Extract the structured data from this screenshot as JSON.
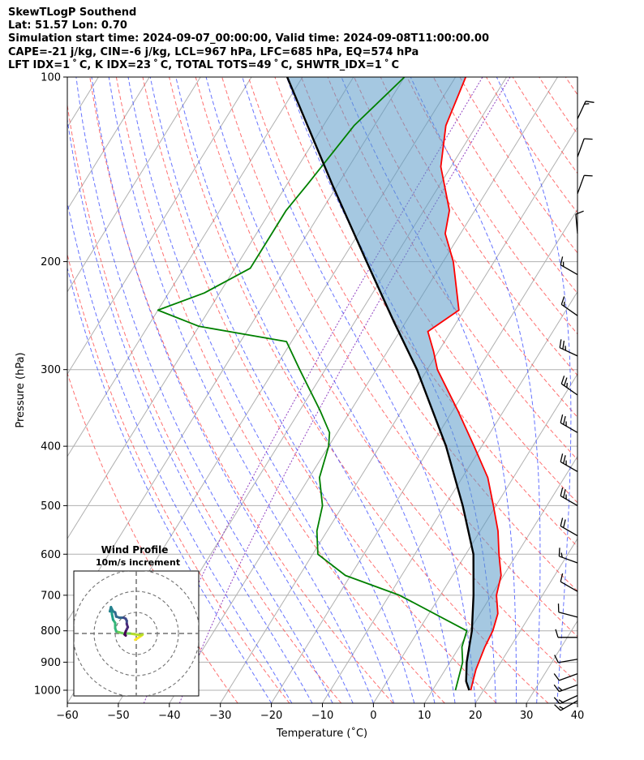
{
  "header": {
    "line1": "SkewTLogP Southend",
    "line2": "Lat: 51.57   Lon: 0.70",
    "line3": "Simulation start time: 2024-09-07_00:00:00, Valid time: 2024-09-08T11:00:00.00",
    "line4": "CAPE=-21 j/kg, CIN=-6 j/kg, LCL=967 hPa, LFC=685 hPa, EQ=574 hPa",
    "line5": "LFT IDX=1 ˚ C, K IDX=23 ˚ C, TOTAL TOTS=49 ˚ C, SHWTR_IDX=1 ˚ C"
  },
  "chart_data": {
    "type": "skewt",
    "xlabel": "Temperature (˚C)",
    "ylabel": "Pressure (hPa)",
    "xlim": [
      -60,
      40
    ],
    "ylim_hpa": [
      1050,
      100
    ],
    "x_ticks": [
      "−60",
      "−50",
      "−40",
      "−30",
      "−20",
      "−10",
      "0",
      "10",
      "20",
      "30",
      "40"
    ],
    "y_ticks": [
      "100",
      "200",
      "300",
      "400",
      "500",
      "600",
      "700",
      "800",
      "900",
      "1000"
    ],
    "temperature_profile": [
      {
        "p": 1000,
        "t": 17.5
      },
      {
        "p": 975,
        "t": 17.0
      },
      {
        "p": 925,
        "t": 16.0
      },
      {
        "p": 850,
        "t": 15.0
      },
      {
        "p": 800,
        "t": 14.6
      },
      {
        "p": 750,
        "t": 13.5
      },
      {
        "p": 700,
        "t": 11.0
      },
      {
        "p": 650,
        "t": 9.5
      },
      {
        "p": 600,
        "t": 6.5
      },
      {
        "p": 550,
        "t": 3.5
      },
      {
        "p": 500,
        "t": -0.5
      },
      {
        "p": 450,
        "t": -5.0
      },
      {
        "p": 400,
        "t": -11.5
      },
      {
        "p": 350,
        "t": -19.0
      },
      {
        "p": 300,
        "t": -28.0
      },
      {
        "p": 280,
        "t": -31.0
      },
      {
        "p": 260,
        "t": -34.5
      },
      {
        "p": 240,
        "t": -31.0
      },
      {
        "p": 200,
        "t": -38.0
      },
      {
        "p": 180,
        "t": -43.0
      },
      {
        "p": 165,
        "t": -45.0
      },
      {
        "p": 140,
        "t": -52.0
      },
      {
        "p": 120,
        "t": -56.0
      },
      {
        "p": 100,
        "t": -58.0
      }
    ],
    "dewpoint_profile": [
      {
        "p": 1000,
        "t": 14.5
      },
      {
        "p": 900,
        "t": 12.5
      },
      {
        "p": 850,
        "t": 10.5
      },
      {
        "p": 800,
        "t": 9.5
      },
      {
        "p": 700,
        "t": -8.0
      },
      {
        "p": 650,
        "t": -21.0
      },
      {
        "p": 600,
        "t": -29.0
      },
      {
        "p": 550,
        "t": -32.0
      },
      {
        "p": 500,
        "t": -34.0
      },
      {
        "p": 450,
        "t": -38.0
      },
      {
        "p": 400,
        "t": -40.0
      },
      {
        "p": 380,
        "t": -41.5
      },
      {
        "p": 350,
        "t": -46.0
      },
      {
        "p": 300,
        "t": -55.0
      },
      {
        "p": 270,
        "t": -61.0
      },
      {
        "p": 255,
        "t": -80.0
      },
      {
        "p": 240,
        "t": -90.0
      },
      {
        "p": 225,
        "t": -83.0
      },
      {
        "p": 205,
        "t": -77.0
      },
      {
        "p": 180,
        "t": -77.0
      },
      {
        "p": 165,
        "t": -77.0
      },
      {
        "p": 150,
        "t": -76.0
      },
      {
        "p": 120,
        "t": -74.0
      },
      {
        "p": 100,
        "t": -70.0
      }
    ],
    "parcel_profile": [
      {
        "p": 1000,
        "t": 17.2
      },
      {
        "p": 967,
        "t": 15.5
      },
      {
        "p": 900,
        "t": 13.3
      },
      {
        "p": 800,
        "t": 10.5
      },
      {
        "p": 700,
        "t": 6.5
      },
      {
        "p": 600,
        "t": 1.5
      },
      {
        "p": 500,
        "t": -6.5
      },
      {
        "p": 400,
        "t": -17.0
      },
      {
        "p": 300,
        "t": -32.0
      },
      {
        "p": 250,
        "t": -42.5
      },
      {
        "p": 200,
        "t": -55.0
      },
      {
        "p": 150,
        "t": -71.0
      },
      {
        "p": 100,
        "t": -93.0
      }
    ],
    "wind_barbs": [
      {
        "p": 1040,
        "speed_kt": 15,
        "dir": 240
      },
      {
        "p": 1020,
        "speed_kt": 15,
        "dir": 245
      },
      {
        "p": 980,
        "speed_kt": 15,
        "dir": 250
      },
      {
        "p": 940,
        "speed_kt": 10,
        "dir": 250
      },
      {
        "p": 890,
        "speed_kt": 10,
        "dir": 260
      },
      {
        "p": 820,
        "speed_kt": 10,
        "dir": 270
      },
      {
        "p": 760,
        "speed_kt": 10,
        "dir": 285
      },
      {
        "p": 690,
        "speed_kt": 10,
        "dir": 300
      },
      {
        "p": 620,
        "speed_kt": 15,
        "dir": 290
      },
      {
        "p": 560,
        "speed_kt": 20,
        "dir": 300
      },
      {
        "p": 500,
        "speed_kt": 25,
        "dir": 300
      },
      {
        "p": 440,
        "speed_kt": 25,
        "dir": 300
      },
      {
        "p": 380,
        "speed_kt": 25,
        "dir": 300
      },
      {
        "p": 330,
        "speed_kt": 25,
        "dir": 305
      },
      {
        "p": 285,
        "speed_kt": 25,
        "dir": 295
      },
      {
        "p": 245,
        "speed_kt": 15,
        "dir": 305
      },
      {
        "p": 210,
        "speed_kt": 15,
        "dir": 300
      },
      {
        "p": 180,
        "speed_kt": 10,
        "dir": 355
      },
      {
        "p": 155,
        "speed_kt": 10,
        "dir": 20
      },
      {
        "p": 135,
        "speed_kt": 10,
        "dir": 20
      },
      {
        "p": 117,
        "speed_kt": 15,
        "dir": 25
      }
    ],
    "hodograph": {
      "title": "Wind Profile",
      "subtitle": "10m/s increment",
      "ring_increment_ms": 10,
      "points": [
        {
          "u": -0.5,
          "v": -3.0
        },
        {
          "u": 1.0,
          "v": -2.0
        },
        {
          "u": 2.5,
          "v": -1.0
        },
        {
          "u": 3.0,
          "v": -0.5
        },
        {
          "u": 2.0,
          "v": -0.8
        },
        {
          "u": 0.0,
          "v": -0.5
        },
        {
          "u": -3.0,
          "v": 0.0
        },
        {
          "u": -6.0,
          "v": 0.0
        },
        {
          "u": -8.0,
          "v": 0.5
        },
        {
          "u": -9.5,
          "v": 1.0
        },
        {
          "u": -10.0,
          "v": 2.5
        },
        {
          "u": -10.0,
          "v": 5.0
        },
        {
          "u": -11.0,
          "v": 6.5
        },
        {
          "u": -11.5,
          "v": 9.0
        },
        {
          "u": -11.8,
          "v": 11.5
        },
        {
          "u": -12.5,
          "v": 10.5
        },
        {
          "u": -12.0,
          "v": 12.5
        },
        {
          "u": -11.0,
          "v": 10.5
        },
        {
          "u": -10.0,
          "v": 10.0
        },
        {
          "u": -9.5,
          "v": 8.0
        },
        {
          "u": -8.0,
          "v": 7.5
        },
        {
          "u": -6.0,
          "v": 7.5
        },
        {
          "u": -5.0,
          "v": 7.0
        },
        {
          "u": -4.5,
          "v": 6.0
        },
        {
          "u": -4.5,
          "v": 4.5
        },
        {
          "u": -4.0,
          "v": 3.0
        },
        {
          "u": -4.5,
          "v": 2.0
        },
        {
          "u": -5.0,
          "v": 1.0
        },
        {
          "u": -5.5,
          "v": -0.5
        },
        {
          "u": -5.0,
          "v": -1.0
        }
      ]
    }
  }
}
